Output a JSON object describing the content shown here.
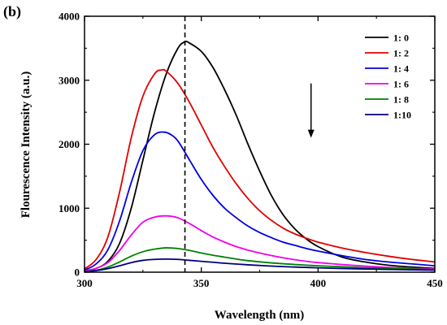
{
  "panel_label": "(b)",
  "chart_data": {
    "type": "line",
    "xlabel": "Wavelength (nm)",
    "ylabel": "Flourescence Intensity (a.u.)",
    "xlim": [
      300,
      450
    ],
    "ylim": [
      0,
      4000
    ],
    "xticks": [
      "300",
      "350",
      "400",
      "450"
    ],
    "yticks": [
      "0",
      "1000",
      "2000",
      "3000",
      "4000"
    ],
    "legend_position": "top-right",
    "vertical_marker_x": 343,
    "arrow_annotation": {
      "x": 397,
      "y_from": 2950,
      "y_to": 2100,
      "direction": "down"
    },
    "series": [
      {
        "name": "1: 0",
        "color": "#000000",
        "x": [
          300,
          305,
          310,
          315,
          320,
          325,
          330,
          335,
          340,
          343,
          345,
          350,
          355,
          360,
          365,
          370,
          375,
          380,
          385,
          390,
          395,
          400,
          410,
          420,
          430,
          440,
          450
        ],
        "y": [
          20,
          60,
          170,
          450,
          1000,
          1750,
          2500,
          3100,
          3500,
          3600,
          3580,
          3450,
          3200,
          2850,
          2450,
          2000,
          1580,
          1200,
          900,
          680,
          520,
          400,
          240,
          160,
          110,
          80,
          60
        ]
      },
      {
        "name": "1: 2",
        "color": "#e00000",
        "x": [
          300,
          305,
          310,
          315,
          320,
          325,
          330,
          333,
          335,
          340,
          345,
          350,
          355,
          360,
          365,
          370,
          375,
          380,
          385,
          390,
          395,
          400,
          410,
          420,
          430,
          440,
          450
        ],
        "y": [
          50,
          200,
          550,
          1250,
          2100,
          2750,
          3100,
          3160,
          3140,
          2950,
          2650,
          2300,
          1950,
          1650,
          1380,
          1150,
          960,
          810,
          690,
          600,
          530,
          470,
          380,
          310,
          250,
          200,
          160
        ]
      },
      {
        "name": "1: 4",
        "color": "#0000e0",
        "x": [
          300,
          305,
          310,
          315,
          320,
          325,
          330,
          334,
          337,
          340,
          345,
          350,
          355,
          360,
          365,
          370,
          375,
          380,
          385,
          390,
          395,
          400,
          410,
          420,
          430,
          440,
          450
        ],
        "y": [
          30,
          130,
          350,
          800,
          1400,
          1900,
          2150,
          2190,
          2150,
          2050,
          1750,
          1450,
          1200,
          1000,
          850,
          720,
          620,
          540,
          470,
          420,
          370,
          330,
          260,
          200,
          160,
          130,
          100
        ]
      },
      {
        "name": "1: 6",
        "color": "#ee00ee",
        "x": [
          300,
          305,
          310,
          315,
          320,
          325,
          330,
          335,
          340,
          345,
          350,
          355,
          360,
          365,
          370,
          375,
          380,
          385,
          390,
          395,
          400,
          410,
          420,
          430,
          440,
          450
        ],
        "y": [
          20,
          60,
          150,
          340,
          580,
          780,
          860,
          880,
          850,
          760,
          650,
          550,
          470,
          400,
          345,
          300,
          260,
          225,
          195,
          170,
          150,
          120,
          95,
          75,
          60,
          50
        ]
      },
      {
        "name": "1: 8",
        "color": "#008000",
        "x": [
          300,
          305,
          310,
          315,
          320,
          325,
          330,
          335,
          340,
          345,
          350,
          355,
          360,
          365,
          370,
          380,
          390,
          400,
          410,
          420,
          430,
          440,
          450
        ],
        "y": [
          10,
          30,
          80,
          160,
          250,
          320,
          360,
          380,
          370,
          340,
          300,
          265,
          235,
          205,
          180,
          145,
          120,
          100,
          85,
          70,
          60,
          50,
          40
        ]
      },
      {
        "name": "1:10",
        "color": "#000080",
        "x": [
          300,
          305,
          310,
          315,
          320,
          325,
          330,
          335,
          340,
          345,
          350,
          355,
          360,
          370,
          380,
          390,
          400,
          410,
          420,
          430,
          440,
          450
        ],
        "y": [
          10,
          25,
          55,
          100,
          150,
          185,
          200,
          205,
          200,
          185,
          170,
          155,
          140,
          115,
          95,
          80,
          68,
          58,
          50,
          43,
          37,
          32
        ]
      }
    ]
  }
}
